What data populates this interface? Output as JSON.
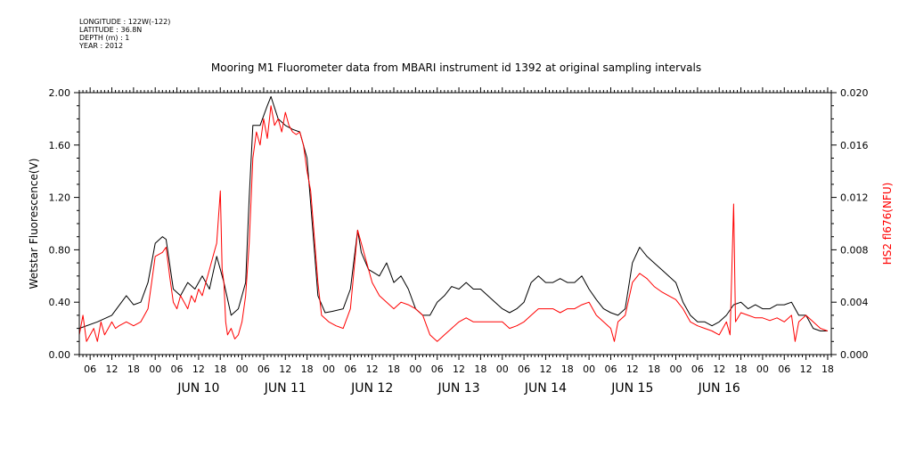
{
  "meta": {
    "longitude": "LONGITUDE : 122W(-122)",
    "latitude": "LATITUDE : 36.8N",
    "depth": "DEPTH (m) : 1",
    "year": "YEAR : 2012"
  },
  "colors": {
    "primary": "#000000",
    "secondary": "#ff0000",
    "background": "#ffffff"
  },
  "chart_data": {
    "type": "line",
    "title": "Mooring M1 Fluorometer data from MBARI instrument id 1392 at original sampling intervals",
    "ylabel": "Wetstar Fluorescence(V)",
    "ylabel_right": "HS2 fl676(NFU)",
    "xlim_hours": [
      -21,
      187
    ],
    "ylim": [
      0,
      2.0
    ],
    "ylim_right": [
      0,
      0.02
    ],
    "y_ticks": [
      "0.00",
      "0.40",
      "0.80",
      "1.20",
      "1.60",
      "2.00"
    ],
    "y_ticks_right": [
      "0.000",
      "0.004",
      "0.008",
      "0.012",
      "0.016",
      "0.020"
    ],
    "hour_tick_labels": [
      "00",
      "06",
      "12",
      "18"
    ],
    "day_labels": [
      "JUN 10",
      "JUN 11",
      "JUN 12",
      "JUN 13",
      "JUN 14",
      "JUN 15",
      "JUN 16"
    ],
    "series": [
      {
        "name": "Wetstar Fluorescence(V)",
        "color": "#000000",
        "axis": "left",
        "points": [
          [
            -21,
            0.2
          ],
          [
            -16,
            0.25
          ],
          [
            -12,
            0.3
          ],
          [
            -8,
            0.45
          ],
          [
            -6,
            0.38
          ],
          [
            -4,
            0.4
          ],
          [
            -2,
            0.55
          ],
          [
            0,
            0.85
          ],
          [
            2,
            0.9
          ],
          [
            3,
            0.88
          ],
          [
            5,
            0.5
          ],
          [
            7,
            0.45
          ],
          [
            9,
            0.55
          ],
          [
            11,
            0.5
          ],
          [
            13,
            0.6
          ],
          [
            15,
            0.5
          ],
          [
            17,
            0.75
          ],
          [
            18,
            0.65
          ],
          [
            19,
            0.55
          ],
          [
            21,
            0.3
          ],
          [
            23,
            0.35
          ],
          [
            25,
            0.55
          ],
          [
            26,
            1.2
          ],
          [
            27,
            1.75
          ],
          [
            29,
            1.75
          ],
          [
            31,
            1.9
          ],
          [
            32,
            1.97
          ],
          [
            34,
            1.8
          ],
          [
            36,
            1.75
          ],
          [
            38,
            1.72
          ],
          [
            40,
            1.7
          ],
          [
            42,
            1.5
          ],
          [
            44,
            0.8
          ],
          [
            45,
            0.45
          ],
          [
            47,
            0.32
          ],
          [
            49,
            0.33
          ],
          [
            52,
            0.35
          ],
          [
            54,
            0.5
          ],
          [
            56,
            0.95
          ],
          [
            57,
            0.78
          ],
          [
            59,
            0.65
          ],
          [
            62,
            0.6
          ],
          [
            64,
            0.7
          ],
          [
            66,
            0.55
          ],
          [
            68,
            0.6
          ],
          [
            70,
            0.5
          ],
          [
            72,
            0.35
          ],
          [
            74,
            0.3
          ],
          [
            76,
            0.3
          ],
          [
            78,
            0.4
          ],
          [
            80,
            0.45
          ],
          [
            82,
            0.52
          ],
          [
            84,
            0.5
          ],
          [
            86,
            0.55
          ],
          [
            88,
            0.5
          ],
          [
            90,
            0.5
          ],
          [
            92,
            0.45
          ],
          [
            94,
            0.4
          ],
          [
            96,
            0.35
          ],
          [
            98,
            0.32
          ],
          [
            100,
            0.35
          ],
          [
            102,
            0.4
          ],
          [
            104,
            0.55
          ],
          [
            106,
            0.6
          ],
          [
            108,
            0.55
          ],
          [
            110,
            0.55
          ],
          [
            112,
            0.58
          ],
          [
            114,
            0.55
          ],
          [
            116,
            0.55
          ],
          [
            118,
            0.6
          ],
          [
            120,
            0.5
          ],
          [
            122,
            0.42
          ],
          [
            124,
            0.35
          ],
          [
            126,
            0.32
          ],
          [
            128,
            0.3
          ],
          [
            130,
            0.35
          ],
          [
            132,
            0.7
          ],
          [
            134,
            0.82
          ],
          [
            136,
            0.75
          ],
          [
            138,
            0.7
          ],
          [
            140,
            0.65
          ],
          [
            142,
            0.6
          ],
          [
            144,
            0.55
          ],
          [
            146,
            0.4
          ],
          [
            148,
            0.3
          ],
          [
            150,
            0.25
          ],
          [
            152,
            0.25
          ],
          [
            154,
            0.22
          ],
          [
            156,
            0.25
          ],
          [
            158,
            0.3
          ],
          [
            160,
            0.38
          ],
          [
            162,
            0.4
          ],
          [
            164,
            0.35
          ],
          [
            166,
            0.38
          ],
          [
            168,
            0.35
          ],
          [
            170,
            0.35
          ],
          [
            172,
            0.38
          ],
          [
            174,
            0.38
          ],
          [
            176,
            0.4
          ],
          [
            178,
            0.3
          ],
          [
            180,
            0.3
          ],
          [
            182,
            0.2
          ],
          [
            184,
            0.18
          ],
          [
            186,
            0.18
          ]
        ]
      },
      {
        "name": "HS2 fl676(NFU)",
        "color": "#ff0000",
        "axis": "right",
        "points": [
          [
            -21,
            0.0015
          ],
          [
            -20,
            0.003
          ],
          [
            -19,
            0.001
          ],
          [
            -18,
            0.0015
          ],
          [
            -17,
            0.002
          ],
          [
            -16,
            0.001
          ],
          [
            -15,
            0.0025
          ],
          [
            -14,
            0.0015
          ],
          [
            -13,
            0.002
          ],
          [
            -12,
            0.0025
          ],
          [
            -11,
            0.002
          ],
          [
            -10,
            0.0022
          ],
          [
            -8,
            0.0025
          ],
          [
            -6,
            0.0022
          ],
          [
            -4,
            0.0025
          ],
          [
            -2,
            0.0035
          ],
          [
            -1,
            0.0055
          ],
          [
            0,
            0.0075
          ],
          [
            2,
            0.0078
          ],
          [
            3,
            0.0082
          ],
          [
            4,
            0.006
          ],
          [
            5,
            0.004
          ],
          [
            6,
            0.0035
          ],
          [
            7,
            0.0045
          ],
          [
            8,
            0.004
          ],
          [
            9,
            0.0035
          ],
          [
            10,
            0.0045
          ],
          [
            11,
            0.004
          ],
          [
            12,
            0.005
          ],
          [
            13,
            0.0045
          ],
          [
            14,
            0.0055
          ],
          [
            15,
            0.0065
          ],
          [
            16,
            0.0075
          ],
          [
            17,
            0.0085
          ],
          [
            18,
            0.0125
          ],
          [
            18.5,
            0.0065
          ],
          [
            19,
            0.0055
          ],
          [
            19.5,
            0.0025
          ],
          [
            20,
            0.0015
          ],
          [
            21,
            0.002
          ],
          [
            22,
            0.0012
          ],
          [
            23,
            0.0015
          ],
          [
            24,
            0.0025
          ],
          [
            25,
            0.0045
          ],
          [
            26,
            0.0085
          ],
          [
            27,
            0.015
          ],
          [
            28,
            0.017
          ],
          [
            29,
            0.016
          ],
          [
            30,
            0.018
          ],
          [
            31,
            0.0165
          ],
          [
            32,
            0.019
          ],
          [
            33,
            0.0175
          ],
          [
            34,
            0.018
          ],
          [
            35,
            0.017
          ],
          [
            36,
            0.0185
          ],
          [
            37,
            0.0175
          ],
          [
            38,
            0.017
          ],
          [
            39,
            0.0168
          ],
          [
            40,
            0.017
          ],
          [
            41,
            0.016
          ],
          [
            42,
            0.014
          ],
          [
            43,
            0.0125
          ],
          [
            44,
            0.009
          ],
          [
            45,
            0.0055
          ],
          [
            46,
            0.003
          ],
          [
            48,
            0.0025
          ],
          [
            50,
            0.0022
          ],
          [
            52,
            0.002
          ],
          [
            54,
            0.0035
          ],
          [
            55,
            0.0065
          ],
          [
            56,
            0.0095
          ],
          [
            57,
            0.0085
          ],
          [
            58,
            0.0075
          ],
          [
            60,
            0.0055
          ],
          [
            62,
            0.0045
          ],
          [
            64,
            0.004
          ],
          [
            66,
            0.0035
          ],
          [
            68,
            0.004
          ],
          [
            70,
            0.0038
          ],
          [
            72,
            0.0035
          ],
          [
            74,
            0.003
          ],
          [
            76,
            0.0015
          ],
          [
            78,
            0.001
          ],
          [
            80,
            0.0015
          ],
          [
            82,
            0.002
          ],
          [
            84,
            0.0025
          ],
          [
            86,
            0.0028
          ],
          [
            88,
            0.0025
          ],
          [
            90,
            0.0025
          ],
          [
            92,
            0.0025
          ],
          [
            94,
            0.0025
          ],
          [
            96,
            0.0025
          ],
          [
            98,
            0.002
          ],
          [
            100,
            0.0022
          ],
          [
            102,
            0.0025
          ],
          [
            104,
            0.003
          ],
          [
            106,
            0.0035
          ],
          [
            108,
            0.0035
          ],
          [
            110,
            0.0035
          ],
          [
            112,
            0.0032
          ],
          [
            114,
            0.0035
          ],
          [
            116,
            0.0035
          ],
          [
            118,
            0.0038
          ],
          [
            120,
            0.004
          ],
          [
            122,
            0.003
          ],
          [
            124,
            0.0025
          ],
          [
            126,
            0.002
          ],
          [
            127,
            0.001
          ],
          [
            128,
            0.0025
          ],
          [
            130,
            0.003
          ],
          [
            132,
            0.0055
          ],
          [
            134,
            0.0062
          ],
          [
            136,
            0.0058
          ],
          [
            138,
            0.0052
          ],
          [
            140,
            0.0048
          ],
          [
            142,
            0.0045
          ],
          [
            144,
            0.0042
          ],
          [
            146,
            0.0035
          ],
          [
            148,
            0.0025
          ],
          [
            150,
            0.0022
          ],
          [
            152,
            0.002
          ],
          [
            154,
            0.0018
          ],
          [
            156,
            0.0015
          ],
          [
            158,
            0.0025
          ],
          [
            159,
            0.0015
          ],
          [
            160,
            0.0115
          ],
          [
            160.5,
            0.0025
          ],
          [
            162,
            0.0032
          ],
          [
            164,
            0.003
          ],
          [
            166,
            0.0028
          ],
          [
            168,
            0.0028
          ],
          [
            170,
            0.0026
          ],
          [
            172,
            0.0028
          ],
          [
            174,
            0.0025
          ],
          [
            176,
            0.003
          ],
          [
            177,
            0.001
          ],
          [
            178,
            0.0025
          ],
          [
            180,
            0.003
          ],
          [
            182,
            0.0025
          ],
          [
            184,
            0.002
          ],
          [
            186,
            0.0018
          ]
        ]
      }
    ]
  }
}
